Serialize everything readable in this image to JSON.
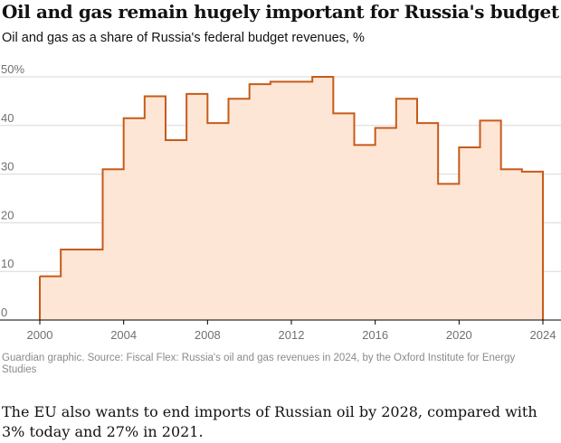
{
  "header": {
    "title": "Oil and gas remain hugely important for Russia's budget",
    "subtitle": "Oil and gas as a share of Russia's federal budget revenues, %"
  },
  "footer": {
    "source": "Guardian graphic. Source: Fiscal Flex: Russia's oil and gas revenues in 2024, by the Oxford Institute for Energy Studies",
    "caption": "The EU also wants to end imports of Russian oil by 2028, compared with 3% today and 27% in 2021."
  },
  "colors": {
    "line": "#c85a19",
    "fill": "#fde6d5",
    "grid": "#d8d8d8",
    "baseline": "#000000"
  },
  "chart_data": {
    "type": "area",
    "style": "step",
    "title": "Oil and gas remain hugely important for Russia's budget",
    "subtitle": "Oil and gas as a share of Russia's federal budget revenues, %",
    "xlabel": "",
    "ylabel": "",
    "x": [
      2000,
      2001,
      2002,
      2003,
      2004,
      2005,
      2006,
      2007,
      2008,
      2009,
      2010,
      2011,
      2012,
      2013,
      2014,
      2015,
      2016,
      2017,
      2018,
      2019,
      2020,
      2021,
      2022,
      2023,
      2024
    ],
    "values": [
      9,
      14.5,
      14.5,
      31,
      41.5,
      46,
      37,
      46.5,
      40.5,
      45.5,
      48.5,
      49,
      49,
      50,
      42.5,
      36,
      39.5,
      45.5,
      40.5,
      28,
      35.5,
      41,
      31,
      30.5,
      30.5
    ],
    "xlim": [
      1999.5,
      2024.5
    ],
    "ylim": [
      0,
      50
    ],
    "xticks": [
      2000,
      2004,
      2008,
      2012,
      2016,
      2020,
      2024
    ],
    "xtick_labels": [
      "2000",
      "2004",
      "2008",
      "2012",
      "2016",
      "2020",
      "2024"
    ],
    "yticks": [
      0,
      10,
      20,
      30,
      40,
      50
    ],
    "ytick_labels": [
      "0",
      "10",
      "20",
      "30",
      "40",
      "50%"
    ],
    "grid": true,
    "legend": "none"
  }
}
